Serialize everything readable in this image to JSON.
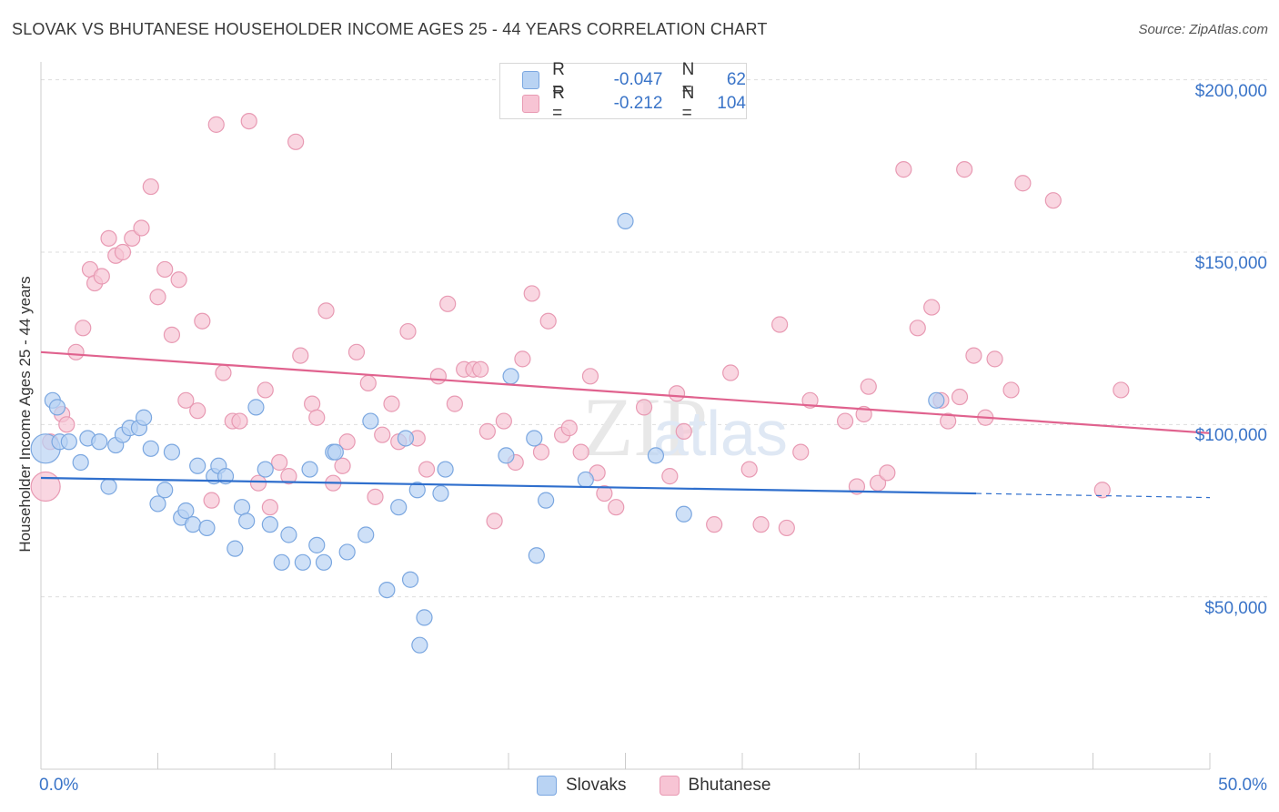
{
  "title": "SLOVAK VS BHUTANESE HOUSEHOLDER INCOME AGES 25 - 44 YEARS CORRELATION CHART",
  "source": "Source: ZipAtlas.com",
  "colors": {
    "slovaks_fill": "#b9d3f3",
    "slovaks_stroke": "#7ba7e0",
    "slovaks_line": "#2f6fcd",
    "bhutanese_fill": "#f7c4d4",
    "bhutanese_stroke": "#e89ab3",
    "bhutanese_line": "#e0628e",
    "axis_text": "#3a74c8",
    "grid": "#dddddd"
  },
  "legend": {
    "rows": [
      {
        "r_label": "R =",
        "r_value": "-0.047",
        "n_label": "N =",
        "n_value": "62"
      },
      {
        "r_label": "R =",
        "r_value": "-0.212",
        "n_label": "N =",
        "n_value": "104"
      }
    ]
  },
  "bottom_legend": [
    "Slovaks",
    "Bhutanese"
  ],
  "chart_data": {
    "type": "scatter",
    "title": "SLOVAK VS BHUTANESE HOUSEHOLDER INCOME AGES 25 - 44 YEARS CORRELATION CHART",
    "xlabel": "",
    "ylabel": "Householder Income Ages 25 - 44 years",
    "xlim": [
      0,
      50
    ],
    "ylim": [
      0,
      205000
    ],
    "x_tick_labels": [
      "0.0%",
      "50.0%"
    ],
    "y_ticks": [
      50000,
      100000,
      150000,
      200000
    ],
    "y_tick_labels": [
      "$50,000",
      "$100,000",
      "$150,000",
      "$200,000"
    ],
    "grid": "horizontal dashed",
    "legend_position": "top-center",
    "series": [
      {
        "name": "Slovaks",
        "r": -0.047,
        "n": 62,
        "trend": {
          "x0": 0,
          "y0": 84500,
          "x1": 40,
          "y1": 80000,
          "dashed_to_x": 50,
          "dashed_to_y": 78800
        },
        "points": [
          [
            0.2,
            93000
          ],
          [
            0.5,
            107000
          ],
          [
            0.7,
            105000
          ],
          [
            0.8,
            95000
          ],
          [
            1.2,
            95000
          ],
          [
            1.7,
            89000
          ],
          [
            2.0,
            96000
          ],
          [
            2.5,
            95000
          ],
          [
            2.9,
            82000
          ],
          [
            3.2,
            94000
          ],
          [
            3.5,
            97000
          ],
          [
            3.8,
            99000
          ],
          [
            4.2,
            99000
          ],
          [
            4.4,
            102000
          ],
          [
            4.7,
            93000
          ],
          [
            5.0,
            77000
          ],
          [
            5.3,
            81000
          ],
          [
            5.6,
            92000
          ],
          [
            6.0,
            73000
          ],
          [
            6.2,
            75000
          ],
          [
            6.5,
            71000
          ],
          [
            6.7,
            88000
          ],
          [
            7.1,
            70000
          ],
          [
            7.4,
            85000
          ],
          [
            7.6,
            88000
          ],
          [
            7.9,
            85000
          ],
          [
            8.3,
            64000
          ],
          [
            8.6,
            76000
          ],
          [
            8.8,
            72000
          ],
          [
            9.2,
            105000
          ],
          [
            9.6,
            87000
          ],
          [
            9.8,
            71000
          ],
          [
            10.3,
            60000
          ],
          [
            10.6,
            68000
          ],
          [
            11.2,
            60000
          ],
          [
            11.5,
            87000
          ],
          [
            11.8,
            65000
          ],
          [
            12.1,
            60000
          ],
          [
            12.5,
            92000
          ],
          [
            12.6,
            92000
          ],
          [
            13.1,
            63000
          ],
          [
            13.9,
            68000
          ],
          [
            14.1,
            101000
          ],
          [
            14.8,
            52000
          ],
          [
            15.3,
            76000
          ],
          [
            15.6,
            96000
          ],
          [
            15.8,
            55000
          ],
          [
            16.1,
            81000
          ],
          [
            16.4,
            44000
          ],
          [
            16.2,
            36000
          ],
          [
            17.1,
            80000
          ],
          [
            17.3,
            87000
          ],
          [
            19.9,
            91000
          ],
          [
            20.1,
            114000
          ],
          [
            21.1,
            96000
          ],
          [
            21.2,
            62000
          ],
          [
            21.6,
            78000
          ],
          [
            23.3,
            84000
          ],
          [
            25.0,
            159000
          ],
          [
            26.3,
            91000
          ],
          [
            27.5,
            74000
          ],
          [
            38.3,
            107000
          ]
        ]
      },
      {
        "name": "Bhutanese",
        "r": -0.212,
        "n": 104,
        "trend": {
          "x0": 0,
          "y0": 121000,
          "x1": 50,
          "y1": 97500
        },
        "points": [
          [
            0.2,
            82000
          ],
          [
            0.4,
            95000
          ],
          [
            0.9,
            103000
          ],
          [
            1.1,
            100000
          ],
          [
            1.5,
            121000
          ],
          [
            1.8,
            128000
          ],
          [
            2.1,
            145000
          ],
          [
            2.3,
            141000
          ],
          [
            2.6,
            143000
          ],
          [
            2.9,
            154000
          ],
          [
            3.2,
            149000
          ],
          [
            3.5,
            150000
          ],
          [
            3.9,
            154000
          ],
          [
            4.3,
            157000
          ],
          [
            4.7,
            169000
          ],
          [
            5.0,
            137000
          ],
          [
            5.3,
            145000
          ],
          [
            5.6,
            126000
          ],
          [
            5.9,
            142000
          ],
          [
            6.2,
            107000
          ],
          [
            6.7,
            104000
          ],
          [
            6.9,
            130000
          ],
          [
            7.3,
            78000
          ],
          [
            7.5,
            187000
          ],
          [
            7.8,
            115000
          ],
          [
            8.2,
            101000
          ],
          [
            8.5,
            101000
          ],
          [
            8.9,
            188000
          ],
          [
            9.3,
            83000
          ],
          [
            9.6,
            110000
          ],
          [
            9.8,
            76000
          ],
          [
            10.2,
            89000
          ],
          [
            10.6,
            85000
          ],
          [
            10.9,
            182000
          ],
          [
            11.1,
            120000
          ],
          [
            11.6,
            106000
          ],
          [
            11.8,
            102000
          ],
          [
            12.2,
            133000
          ],
          [
            12.5,
            83000
          ],
          [
            12.9,
            88000
          ],
          [
            13.1,
            95000
          ],
          [
            13.5,
            121000
          ],
          [
            14.0,
            112000
          ],
          [
            14.3,
            79000
          ],
          [
            14.6,
            97000
          ],
          [
            15.0,
            106000
          ],
          [
            15.3,
            95000
          ],
          [
            15.7,
            127000
          ],
          [
            16.1,
            96000
          ],
          [
            16.5,
            87000
          ],
          [
            17.0,
            114000
          ],
          [
            17.4,
            135000
          ],
          [
            17.7,
            106000
          ],
          [
            18.1,
            116000
          ],
          [
            18.5,
            116000
          ],
          [
            18.8,
            116000
          ],
          [
            19.1,
            98000
          ],
          [
            19.4,
            72000
          ],
          [
            19.8,
            101000
          ],
          [
            20.3,
            89000
          ],
          [
            20.6,
            119000
          ],
          [
            21.0,
            138000
          ],
          [
            21.4,
            92000
          ],
          [
            21.7,
            130000
          ],
          [
            22.3,
            97000
          ],
          [
            22.6,
            99000
          ],
          [
            23.1,
            92000
          ],
          [
            23.5,
            114000
          ],
          [
            23.8,
            86000
          ],
          [
            24.1,
            80000
          ],
          [
            24.6,
            76000
          ],
          [
            25.8,
            105000
          ],
          [
            26.9,
            85000
          ],
          [
            27.2,
            109000
          ],
          [
            27.5,
            98000
          ],
          [
            28.8,
            71000
          ],
          [
            29.5,
            115000
          ],
          [
            30.3,
            87000
          ],
          [
            30.8,
            71000
          ],
          [
            31.6,
            129000
          ],
          [
            31.9,
            70000
          ],
          [
            32.5,
            92000
          ],
          [
            32.9,
            107000
          ],
          [
            34.4,
            101000
          ],
          [
            34.9,
            82000
          ],
          [
            35.4,
            111000
          ],
          [
            35.8,
            83000
          ],
          [
            36.2,
            86000
          ],
          [
            37.5,
            128000
          ],
          [
            38.1,
            134000
          ],
          [
            38.5,
            107000
          ],
          [
            38.8,
            101000
          ],
          [
            39.3,
            108000
          ],
          [
            39.9,
            120000
          ],
          [
            40.4,
            102000
          ],
          [
            40.8,
            119000
          ],
          [
            41.5,
            110000
          ],
          [
            39.5,
            174000
          ],
          [
            42.0,
            170000
          ],
          [
            43.3,
            165000
          ],
          [
            45.4,
            81000
          ],
          [
            46.2,
            110000
          ],
          [
            36.9,
            174000
          ],
          [
            35.2,
            103000
          ]
        ]
      }
    ]
  }
}
